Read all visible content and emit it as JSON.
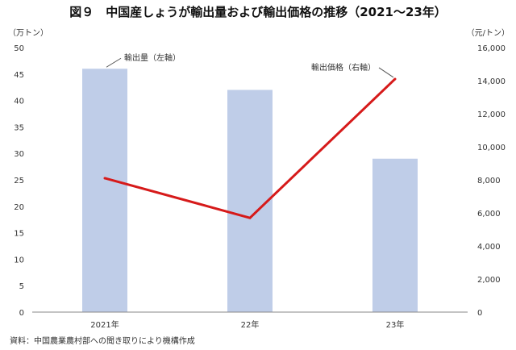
{
  "title": "図９　中国産しょうが輸出量および輸出価格の推移（2021～23年）",
  "source": "資料：中国農業農村部への聞き取りにより機構作成",
  "chart_data": {
    "type": "bar+line",
    "categories": [
      "2021年",
      "22年",
      "23年"
    ],
    "series": [
      {
        "name": "輸出量（左軸）",
        "kind": "bar",
        "axis": "left",
        "values": [
          46,
          42,
          29
        ],
        "color": "#bfcde8"
      },
      {
        "name": "輸出価格（右軸）",
        "kind": "line",
        "axis": "right",
        "values": [
          8100,
          5700,
          14100
        ],
        "color": "#d61a1a"
      }
    ],
    "left_axis": {
      "unit": "（万トン）",
      "min": 0,
      "max": 50,
      "step": 5,
      "tick_labels": [
        "0",
        "5",
        "10",
        "15",
        "20",
        "25",
        "30",
        "35",
        "40",
        "45",
        "50"
      ]
    },
    "right_axis": {
      "unit": "（元/トン）",
      "min": 0,
      "max": 16000,
      "step": 2000,
      "tick_labels": [
        "0",
        "2,000",
        "4,000",
        "6,000",
        "8,000",
        "10,000",
        "12,000",
        "14,000",
        "16,000"
      ]
    },
    "grid": false,
    "legend": "callout labels"
  }
}
